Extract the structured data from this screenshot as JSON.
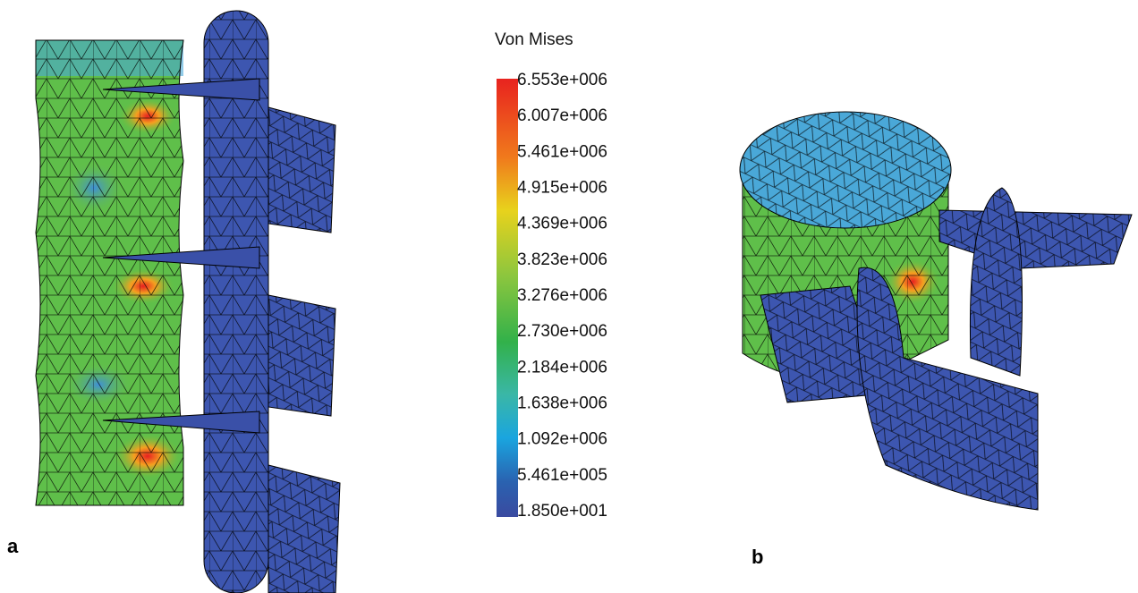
{
  "legend": {
    "title": "Von Mises",
    "labels": [
      "6.553e+006",
      "6.007e+006",
      "5.461e+006",
      "4.915e+006",
      "4.369e+006",
      "3.823e+006",
      "3.276e+006",
      "2.730e+006",
      "2.184e+006",
      "1.638e+006",
      "1.092e+006",
      "5.461e+005",
      "1.850e+001"
    ]
  },
  "panels": [
    "a",
    "b"
  ]
}
